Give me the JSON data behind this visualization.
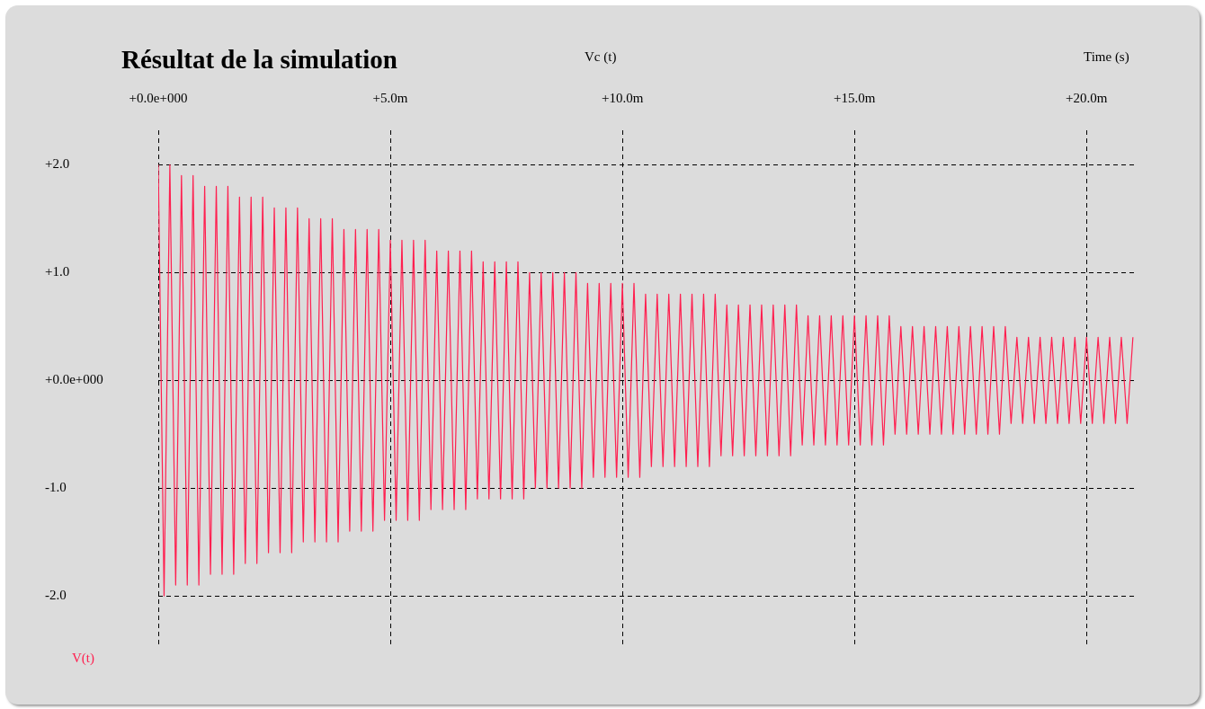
{
  "chart_data": {
    "type": "line",
    "title": "Résultat de la simulation",
    "subtitle": "Vc (t)",
    "xlabel": "Time (s)",
    "legend": "bottom left",
    "grid": true,
    "marker": "none",
    "line_style": "solid",
    "xlim": [
      0,
      21.1
    ],
    "ylim": [
      -2.45,
      2.32
    ],
    "xticks": [
      {
        "value": 0,
        "label": "+0.0e+000"
      },
      {
        "value": 5,
        "label": "+5.0m"
      },
      {
        "value": 10,
        "label": "+10.0m"
      },
      {
        "value": 15,
        "label": "+15.0m"
      },
      {
        "value": 20,
        "label": "+20.0m"
      }
    ],
    "yticks": [
      {
        "value": 2,
        "label": "+2.0"
      },
      {
        "value": 1,
        "label": "+1.0"
      },
      {
        "value": 0,
        "label": "+0.0e+000"
      },
      {
        "value": -1,
        "label": "-1.0"
      },
      {
        "value": -2,
        "label": "-2.0"
      }
    ],
    "x": [
      0,
      0.125,
      0.25,
      0.375,
      0.5,
      0.625,
      0.75,
      0.875,
      1,
      1.125,
      1.25,
      1.375,
      1.5,
      1.625,
      1.75,
      1.875,
      2,
      2.125,
      2.25,
      2.375,
      2.5,
      2.625,
      2.75,
      2.875,
      3,
      3.125,
      3.25,
      3.375,
      3.5,
      3.625,
      3.75,
      3.875,
      4,
      4.125,
      4.25,
      4.375,
      4.5,
      4.625,
      4.75,
      4.875,
      5,
      5.125,
      5.25,
      5.375,
      5.5,
      5.625,
      5.75,
      5.875,
      6,
      6.125,
      6.25,
      6.375,
      6.5,
      6.625,
      6.75,
      6.875,
      7,
      7.125,
      7.25,
      7.375,
      7.5,
      7.625,
      7.75,
      7.875,
      8,
      8.125,
      8.25,
      8.375,
      8.5,
      8.625,
      8.75,
      8.875,
      9,
      9.125,
      9.25,
      9.375,
      9.5,
      9.625,
      9.75,
      9.875,
      10,
      10.125,
      10.25,
      10.375,
      10.5,
      10.625,
      10.75,
      10.875,
      11,
      11.125,
      11.25,
      11.375,
      11.5,
      11.625,
      11.75,
      11.875,
      12,
      12.125,
      12.25,
      12.375,
      12.5,
      12.625,
      12.75,
      12.875,
      13,
      13.125,
      13.25,
      13.375,
      13.5,
      13.625,
      13.75,
      13.875,
      14,
      14.125,
      14.25,
      14.375,
      14.5,
      14.625,
      14.75,
      14.875,
      15,
      15.125,
      15.25,
      15.375,
      15.5,
      15.625,
      15.75,
      15.875,
      16,
      16.125,
      16.25,
      16.375,
      16.5,
      16.625,
      16.75,
      16.875,
      17,
      17.125,
      17.25,
      17.375,
      17.5,
      17.625,
      17.75,
      17.875,
      18,
      18.125,
      18.25,
      18.375,
      18.5,
      18.625,
      18.75,
      18.875,
      19,
      19.125,
      19.25,
      19.375,
      19.5,
      19.625,
      19.75,
      19.875,
      20,
      20.125,
      20.25,
      20.375,
      20.5,
      20.625,
      20.75,
      20.875,
      21
    ],
    "series": [
      {
        "name": "V(t)",
        "color": "#ff1f4f",
        "values": [
          2.0,
          -2.0,
          2.0,
          -1.9,
          1.9,
          -1.9,
          1.9,
          -1.9,
          1.8,
          -1.8,
          1.8,
          -1.8,
          1.8,
          -1.8,
          1.7,
          -1.7,
          1.7,
          -1.7,
          1.7,
          -1.6,
          1.6,
          -1.6,
          1.6,
          -1.6,
          1.6,
          -1.5,
          1.5,
          -1.5,
          1.5,
          -1.5,
          1.5,
          -1.5,
          1.4,
          -1.4,
          1.4,
          -1.4,
          1.4,
          -1.4,
          1.4,
          -1.3,
          1.3,
          -1.3,
          1.3,
          -1.3,
          1.3,
          -1.3,
          1.3,
          -1.2,
          1.2,
          -1.2,
          1.2,
          -1.2,
          1.2,
          -1.2,
          1.2,
          -1.1,
          1.1,
          -1.1,
          1.1,
          -1.1,
          1.1,
          -1.1,
          1.1,
          -1.1,
          1.0,
          -1.0,
          1.0,
          -1.0,
          1.0,
          -1.0,
          1.0,
          -1.0,
          1.0,
          -1.0,
          0.9,
          -0.9,
          0.9,
          -0.9,
          0.9,
          -0.9,
          0.9,
          -0.9,
          0.9,
          -0.9,
          0.8,
          -0.8,
          0.8,
          -0.8,
          0.8,
          -0.8,
          0.8,
          -0.8,
          0.8,
          -0.8,
          0.8,
          -0.8,
          0.8,
          -0.7,
          0.7,
          -0.7,
          0.7,
          -0.7,
          0.7,
          -0.7,
          0.7,
          -0.7,
          0.7,
          -0.7,
          0.7,
          -0.7,
          0.7,
          -0.6,
          0.6,
          -0.6,
          0.6,
          -0.6,
          0.6,
          -0.6,
          0.6,
          -0.6,
          0.6,
          -0.6,
          0.6,
          -0.6,
          0.6,
          -0.6,
          0.6,
          -0.5,
          0.5,
          -0.5,
          0.5,
          -0.5,
          0.5,
          -0.5,
          0.5,
          -0.5,
          0.5,
          -0.5,
          0.5,
          -0.5,
          0.5,
          -0.5,
          0.5,
          -0.5,
          0.5,
          -0.5,
          0.5,
          -0.4,
          0.4,
          -0.4,
          0.4,
          -0.4,
          0.4,
          -0.4,
          0.4,
          -0.4,
          0.4,
          -0.4,
          0.4,
          -0.4,
          0.4,
          -0.4,
          0.4,
          -0.4,
          0.4,
          -0.4,
          0.4,
          -0.4,
          0.4
        ]
      }
    ]
  }
}
